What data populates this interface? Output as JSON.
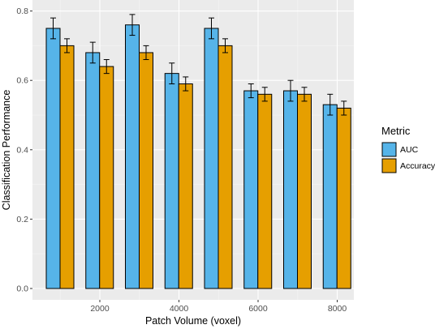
{
  "chart_data": {
    "type": "bar",
    "title": "",
    "xlabel": "Patch Volume (voxel)",
    "ylabel": "Classification Performance",
    "ylim": [
      0,
      0.82
    ],
    "yticks": [
      "0.0",
      "0.2",
      "0.4",
      "0.6",
      "0.8"
    ],
    "x_tick_labels": [
      "2000",
      "4000",
      "6000",
      "8000"
    ],
    "grid": true,
    "legend": {
      "title": "Metric",
      "position": "right",
      "entries": [
        "AUC",
        "Accuracy"
      ]
    },
    "series": [
      {
        "name": "AUC",
        "color": "#56B4E9",
        "values": [
          0.75,
          0.68,
          0.76,
          0.62,
          0.75,
          0.57,
          0.57,
          0.53
        ],
        "error_low": [
          0.72,
          0.65,
          0.73,
          0.59,
          0.72,
          0.55,
          0.54,
          0.5
        ],
        "error_high": [
          0.78,
          0.71,
          0.79,
          0.65,
          0.78,
          0.59,
          0.6,
          0.56
        ]
      },
      {
        "name": "Accuracy",
        "color": "#E69F00",
        "values": [
          0.7,
          0.64,
          0.68,
          0.59,
          0.7,
          0.56,
          0.56,
          0.52
        ],
        "error_low": [
          0.68,
          0.62,
          0.66,
          0.57,
          0.68,
          0.54,
          0.54,
          0.5
        ],
        "error_high": [
          0.72,
          0.66,
          0.7,
          0.61,
          0.72,
          0.58,
          0.58,
          0.54
        ]
      }
    ]
  }
}
